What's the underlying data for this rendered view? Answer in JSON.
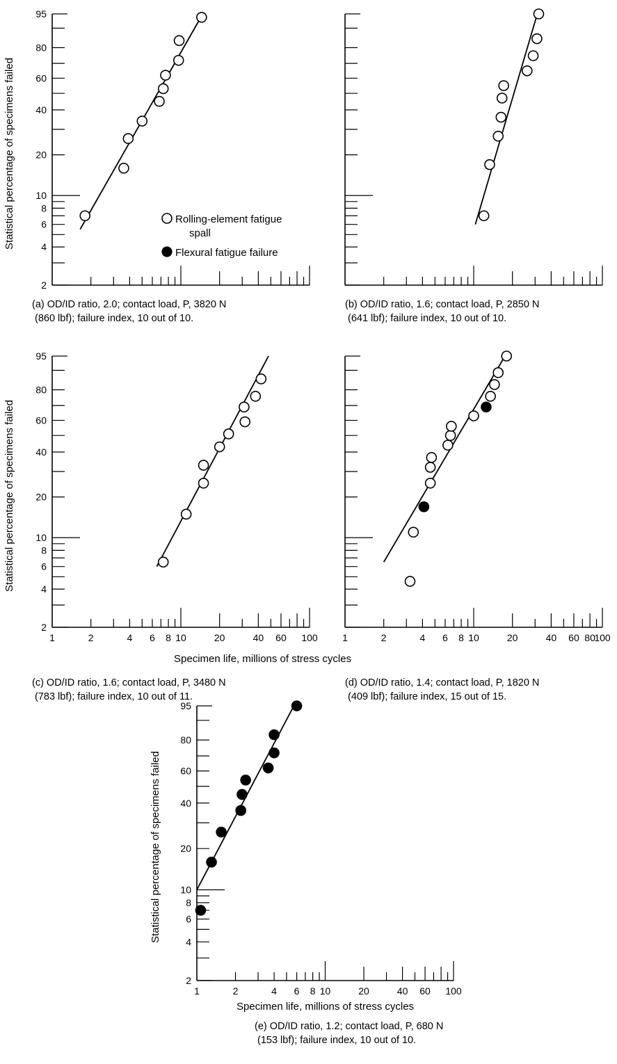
{
  "chart_data": [
    {
      "id": "a",
      "type": "scatter",
      "xscale": "log",
      "yscale": "weibull",
      "xlim": [
        1,
        100
      ],
      "ylim": [
        2,
        95
      ],
      "ylabel": "Statistical percentage of specimens failed",
      "xlabel": "",
      "yticks": [
        "95",
        "80",
        "60",
        "40",
        "20",
        "10",
        "8",
        "6",
        "4",
        "2"
      ],
      "xticks": [],
      "points": [
        {
          "x": 1.8,
          "y": 7,
          "type": "rolling"
        },
        {
          "x": 3.6,
          "y": 16,
          "type": "rolling"
        },
        {
          "x": 3.9,
          "y": 26,
          "type": "rolling"
        },
        {
          "x": 5.0,
          "y": 34,
          "type": "rolling"
        },
        {
          "x": 6.8,
          "y": 45,
          "type": "rolling"
        },
        {
          "x": 7.3,
          "y": 53,
          "type": "rolling"
        },
        {
          "x": 7.6,
          "y": 62,
          "type": "rolling"
        },
        {
          "x": 9.6,
          "y": 72,
          "type": "rolling"
        },
        {
          "x": 9.7,
          "y": 84,
          "type": "rolling"
        },
        {
          "x": 14.5,
          "y": 94,
          "type": "rolling"
        }
      ],
      "fit_line": [
        [
          1.65,
          5.5
        ],
        [
          14.8,
          95
        ]
      ],
      "caption": [
        "(a) OD/ID ratio, 2.0; contact load, P, 3820 N",
        "(860 lbf); failure index, 10 out of 10."
      ]
    },
    {
      "id": "b",
      "type": "scatter",
      "xscale": "log",
      "yscale": "weibull",
      "xlim": [
        1,
        100
      ],
      "ylim": [
        2,
        95
      ],
      "ylabel": "",
      "xlabel": "",
      "yticks": [],
      "xticks": [],
      "points": [
        {
          "x": 12.0,
          "y": 7,
          "type": "rolling"
        },
        {
          "x": 13.3,
          "y": 17,
          "type": "rolling"
        },
        {
          "x": 15.5,
          "y": 27,
          "type": "rolling"
        },
        {
          "x": 16.3,
          "y": 36,
          "type": "rolling"
        },
        {
          "x": 16.6,
          "y": 47,
          "type": "rolling"
        },
        {
          "x": 17.1,
          "y": 55,
          "type": "rolling"
        },
        {
          "x": 26.0,
          "y": 65,
          "type": "rolling"
        },
        {
          "x": 29.0,
          "y": 75,
          "type": "rolling"
        },
        {
          "x": 31.0,
          "y": 85,
          "type": "rolling"
        },
        {
          "x": 32.0,
          "y": 95,
          "type": "rolling"
        }
      ],
      "fit_line": [
        [
          10.3,
          6
        ],
        [
          31.2,
          95
        ]
      ],
      "caption": [
        "(b) OD/ID ratio, 1.6; contact load, P, 2850 N",
        "(641 lbf); failure index, 10 out of 10."
      ]
    },
    {
      "id": "c",
      "type": "scatter",
      "xscale": "log",
      "yscale": "weibull",
      "xlim": [
        1,
        100
      ],
      "ylim": [
        2,
        95
      ],
      "ylabel": "Statistical percentage of specimens failed",
      "xlabel": "",
      "yticks": [
        "95",
        "80",
        "60",
        "40",
        "20",
        "10",
        "8",
        "6",
        "4",
        "2"
      ],
      "xticks": [
        "1",
        "2",
        "4",
        "6",
        "8",
        "10",
        "20",
        "40",
        "60",
        "100"
      ],
      "points": [
        {
          "x": 7.3,
          "y": 6.5,
          "type": "rolling"
        },
        {
          "x": 11.0,
          "y": 15,
          "type": "rolling"
        },
        {
          "x": 15.0,
          "y": 25,
          "type": "rolling"
        },
        {
          "x": 15.0,
          "y": 33,
          "type": "rolling"
        },
        {
          "x": 20.0,
          "y": 43,
          "type": "rolling"
        },
        {
          "x": 23.5,
          "y": 51,
          "type": "rolling"
        },
        {
          "x": 31.5,
          "y": 59,
          "type": "rolling"
        },
        {
          "x": 31.0,
          "y": 69,
          "type": "rolling"
        },
        {
          "x": 38.0,
          "y": 76,
          "type": "rolling"
        },
        {
          "x": 42.0,
          "y": 86,
          "type": "rolling"
        }
      ],
      "fit_line": [
        [
          6.5,
          6
        ],
        [
          48.0,
          95
        ]
      ],
      "caption": [
        "(c) OD/ID ratio, 1.6; contact load, P, 3480 N",
        "(783 lbf); failure index, 10 out of 11."
      ]
    },
    {
      "id": "d",
      "type": "scatter",
      "xscale": "log",
      "yscale": "weibull",
      "xlim": [
        1,
        100
      ],
      "ylim": [
        2,
        95
      ],
      "ylabel": "",
      "xlabel": "",
      "yticks": [],
      "xticks": [
        "1",
        "2",
        "4",
        "6",
        "8",
        "10",
        "20",
        "40",
        "60",
        "80",
        "100"
      ],
      "points": [
        {
          "x": 3.2,
          "y": 4.6,
          "type": "rolling"
        },
        {
          "x": 3.4,
          "y": 11,
          "type": "rolling"
        },
        {
          "x": 4.1,
          "y": 17,
          "type": "flexural"
        },
        {
          "x": 4.6,
          "y": 25,
          "type": "rolling"
        },
        {
          "x": 4.6,
          "y": 32,
          "type": "rolling"
        },
        {
          "x": 4.7,
          "y": 37,
          "type": "rolling"
        },
        {
          "x": 6.3,
          "y": 44,
          "type": "rolling"
        },
        {
          "x": 6.6,
          "y": 50,
          "type": "rolling"
        },
        {
          "x": 6.7,
          "y": 56,
          "type": "rolling"
        },
        {
          "x": 10.0,
          "y": 63,
          "type": "rolling"
        },
        {
          "x": 12.5,
          "y": 69,
          "type": "flexural"
        },
        {
          "x": 13.5,
          "y": 76,
          "type": "rolling"
        },
        {
          "x": 14.5,
          "y": 83,
          "type": "rolling"
        },
        {
          "x": 15.5,
          "y": 89,
          "type": "rolling"
        },
        {
          "x": 18.0,
          "y": 95,
          "type": "rolling"
        }
      ],
      "fit_line": [
        [
          2.0,
          6.5
        ],
        [
          17.5,
          95
        ]
      ],
      "caption": [
        "(d) OD/ID ratio, 1.4; contact load, P, 1820 N",
        "(409 lbf); failure index, 15 out of 15."
      ]
    },
    {
      "id": "e",
      "type": "scatter",
      "xscale": "log",
      "yscale": "weibull",
      "xlim": [
        1,
        100
      ],
      "ylim": [
        2,
        95
      ],
      "ylabel": "Statistical percentage of specimens failed",
      "xlabel": "Specimen life, millions of stress cycles",
      "yticks": [
        "95",
        "80",
        "60",
        "40",
        "20",
        "10",
        "8",
        "6",
        "4",
        "2"
      ],
      "xticks": [
        "1",
        "2",
        "4",
        "6",
        "8",
        "10",
        "20",
        "40",
        "60",
        "100"
      ],
      "points": [
        {
          "x": 1.07,
          "y": 7,
          "type": "flexural"
        },
        {
          "x": 1.3,
          "y": 16,
          "type": "flexural"
        },
        {
          "x": 1.55,
          "y": 26,
          "type": "flexural"
        },
        {
          "x": 2.2,
          "y": 36,
          "type": "flexural"
        },
        {
          "x": 2.25,
          "y": 45,
          "type": "flexural"
        },
        {
          "x": 2.4,
          "y": 54,
          "type": "flexural"
        },
        {
          "x": 3.6,
          "y": 62,
          "type": "flexural"
        },
        {
          "x": 4.0,
          "y": 72,
          "type": "flexural"
        },
        {
          "x": 4.0,
          "y": 83,
          "type": "flexural"
        },
        {
          "x": 6.0,
          "y": 95,
          "type": "flexural"
        }
      ],
      "fit_line": [
        [
          1.0,
          10
        ],
        [
          5.7,
          95
        ]
      ],
      "caption": [
        "(e) OD/ID ratio, 1.2; contact load, P, 680 N",
        "(153 lbf); failure index, 10 out of 10."
      ]
    }
  ],
  "legend": {
    "rolling_line1": "Rolling-element fatigue",
    "rolling_line2": "spall",
    "flexural": "Flexural fatigue failure"
  },
  "shared_xlabel": "Specimen life, millions of stress cycles"
}
